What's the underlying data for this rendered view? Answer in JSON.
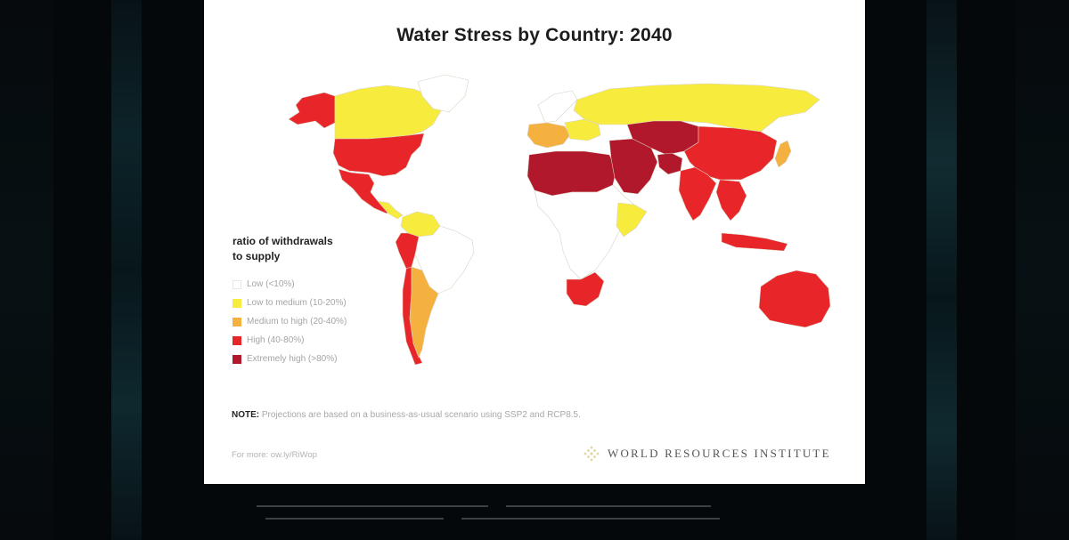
{
  "title": "Water Stress by Country: 2040",
  "legend": {
    "title_line1": "ratio of withdrawals",
    "title_line2": "to supply",
    "items": [
      {
        "label": "Low (<10%)",
        "color": "#ffffff"
      },
      {
        "label": "Low to medium (10-20%)",
        "color": "#f7ec3e"
      },
      {
        "label": "Medium to high (20-40%)",
        "color": "#f4b13f"
      },
      {
        "label": "High (40-80%)",
        "color": "#e8262a"
      },
      {
        "label": "Extremely high (>80%)",
        "color": "#b2182b"
      }
    ]
  },
  "note_label": "NOTE:",
  "note_text": " Projections are based on a business-as-usual scenario using SSP2 and RCP8.5.",
  "more_text": "For more: ow.ly/RiWop",
  "org_name": "WORLD RESOURCES INSTITUTE",
  "colors": {
    "low": "#ffffff",
    "low_medium": "#f7ec3e",
    "medium_high": "#f4b13f",
    "high": "#e8262a",
    "extremely_high": "#b2182b"
  },
  "map_regions": [
    {
      "name": "Alaska",
      "level": "high"
    },
    {
      "name": "Canada",
      "level": "low_medium"
    },
    {
      "name": "Greenland",
      "level": "low"
    },
    {
      "name": "United States",
      "level": "high"
    },
    {
      "name": "Mexico",
      "level": "high"
    },
    {
      "name": "Central America",
      "level": "low_medium"
    },
    {
      "name": "Colombia",
      "level": "low_medium"
    },
    {
      "name": "Brazil",
      "level": "low"
    },
    {
      "name": "Peru",
      "level": "high"
    },
    {
      "name": "Chile",
      "level": "high"
    },
    {
      "name": "Argentina",
      "level": "medium_high"
    },
    {
      "name": "Russia",
      "level": "low_medium"
    },
    {
      "name": "Scandinavia",
      "level": "low"
    },
    {
      "name": "Western Europe",
      "level": "medium_high"
    },
    {
      "name": "Eastern Europe",
      "level": "low_medium"
    },
    {
      "name": "North Africa",
      "level": "extremely_high"
    },
    {
      "name": "Middle East",
      "level": "extremely_high"
    },
    {
      "name": "Central Asia",
      "level": "extremely_high"
    },
    {
      "name": "China",
      "level": "high"
    },
    {
      "name": "India",
      "level": "high"
    },
    {
      "name": "Pakistan",
      "level": "extremely_high"
    },
    {
      "name": "Southeast Asia",
      "level": "high"
    },
    {
      "name": "Japan",
      "level": "medium_high"
    },
    {
      "name": "Indonesia",
      "level": "high"
    },
    {
      "name": "Australia",
      "level": "high"
    },
    {
      "name": "South Africa",
      "level": "high"
    },
    {
      "name": "Sub-Saharan Africa",
      "level": "low"
    },
    {
      "name": "Horn of Africa",
      "level": "low_medium"
    }
  ]
}
